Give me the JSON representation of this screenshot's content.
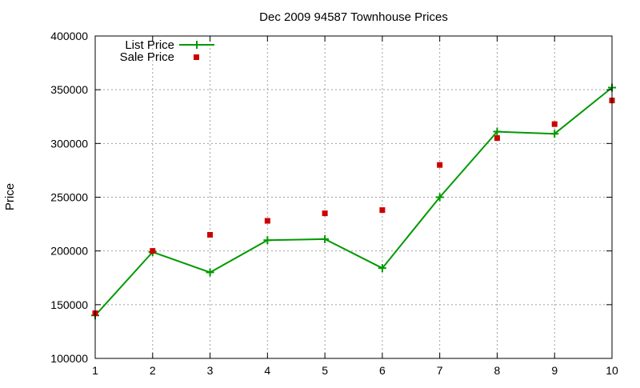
{
  "chart_data": {
    "type": "line",
    "title": "Dec 2009 94587 Townhouse Prices",
    "xlabel": "",
    "ylabel": "Price",
    "x": [
      1,
      2,
      3,
      4,
      5,
      6,
      7,
      8,
      9,
      10
    ],
    "xlim": [
      1,
      10
    ],
    "ylim": [
      100000,
      400000
    ],
    "x_ticks": [
      "1",
      "2",
      "3",
      "4",
      "5",
      "6",
      "7",
      "8",
      "9",
      "10"
    ],
    "y_ticks": [
      "100000",
      "150000",
      "200000",
      "250000",
      "300000",
      "350000",
      "400000"
    ],
    "grid": true,
    "legend_position": "top-left",
    "series": [
      {
        "name": "List Price",
        "style": "line-with-plus-markers",
        "color": "#009900",
        "values": [
          140000,
          199000,
          180000,
          210000,
          211000,
          184000,
          250000,
          311000,
          309000,
          352000
        ]
      },
      {
        "name": "Sale Price",
        "style": "square-markers",
        "color": "#cc0000",
        "values": [
          142000,
          200000,
          215000,
          228000,
          235000,
          238000,
          280000,
          305000,
          318000,
          340000
        ]
      }
    ]
  }
}
